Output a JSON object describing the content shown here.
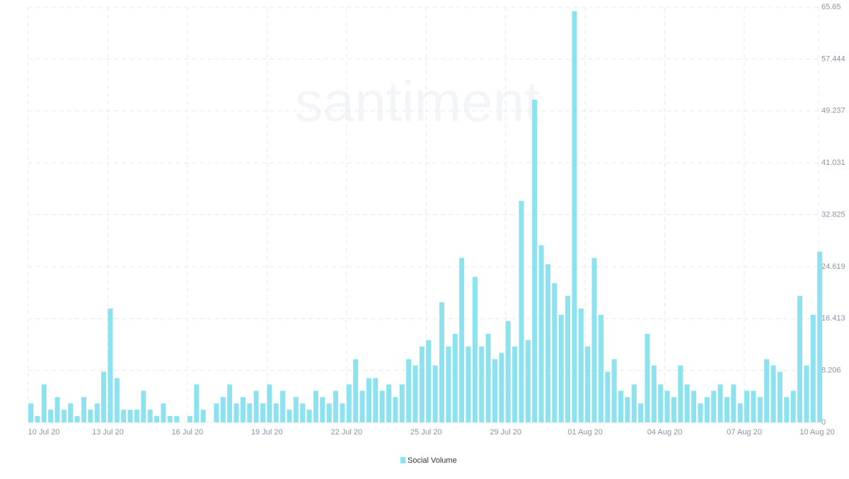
{
  "chart_data": {
    "type": "bar",
    "watermark": "santiment",
    "x": [
      0,
      0.25,
      0.5,
      0.75,
      1,
      1.25,
      1.5,
      1.75,
      2,
      2.25,
      2.5,
      2.75,
      3,
      3.25,
      3.5,
      3.75,
      4,
      4.25,
      4.5,
      4.75,
      5,
      5.25,
      5.5,
      5.75,
      6,
      6.25,
      6.5,
      6.75,
      7,
      7.25,
      7.5,
      7.75,
      8,
      8.25,
      8.5,
      8.75,
      9,
      9.25,
      9.5,
      9.75,
      10,
      10.25,
      10.5,
      10.75,
      11,
      11.25,
      11.5,
      11.75,
      12,
      12.25,
      12.5,
      12.75,
      13,
      13.25,
      13.5,
      13.75,
      14,
      14.25,
      14.5,
      14.75,
      15,
      15.25,
      15.5,
      15.75,
      16,
      16.25,
      16.5,
      16.75,
      17,
      17.25,
      17.5,
      17.75,
      18,
      18.25,
      18.5,
      18.75,
      19,
      19.25,
      19.5,
      19.75,
      20,
      20.25,
      20.5,
      20.75,
      21,
      21.25,
      21.5,
      21.75,
      22,
      22.25,
      22.5,
      22.75,
      23,
      23.25,
      23.5,
      23.75,
      24,
      24.25,
      24.5,
      24.75,
      25,
      25.25,
      25.5,
      25.75,
      26,
      26.25,
      26.5,
      26.75,
      27,
      27.25,
      27.5,
      27.75,
      28,
      28.25,
      28.5,
      28.75,
      29,
      29.25,
      29.5,
      29.75
    ],
    "series": [
      {
        "name": "Social Volume",
        "color": "#8de2ef",
        "values": [
          3,
          1,
          6,
          2,
          4,
          2,
          3,
          1,
          4,
          2,
          3,
          8,
          18,
          7,
          2,
          2,
          2,
          5,
          2,
          1,
          3,
          1,
          1,
          0,
          1,
          6,
          2,
          0,
          3,
          4,
          6,
          3,
          4,
          3,
          5,
          3,
          6,
          3,
          5,
          2,
          4,
          3,
          2,
          5,
          4,
          3,
          5,
          3,
          6,
          10,
          5,
          7,
          7,
          5,
          6,
          4,
          6,
          10,
          9,
          12,
          13,
          9,
          19,
          12,
          14,
          26,
          12,
          23,
          12,
          14,
          10,
          11,
          16,
          12,
          35,
          13,
          51,
          28,
          25,
          22,
          17,
          20,
          65,
          18,
          12,
          26,
          17,
          8,
          10,
          5,
          4,
          6,
          3,
          14,
          9,
          6,
          5,
          4,
          9,
          6,
          5,
          3,
          4,
          5,
          6,
          4,
          6,
          3,
          5,
          5,
          4,
          10,
          9,
          8,
          4,
          5,
          20,
          9,
          17,
          27
        ]
      }
    ],
    "xlim": [
      0,
      29.8
    ],
    "xticks": [
      {
        "value": 0,
        "label": "10 Jul 20"
      },
      {
        "value": 3,
        "label": "13 Jul 20"
      },
      {
        "value": 6,
        "label": "16 Jul 20"
      },
      {
        "value": 9,
        "label": "19 Jul 20"
      },
      {
        "value": 12,
        "label": "22 Jul 20"
      },
      {
        "value": 15,
        "label": "25 Jul 20"
      },
      {
        "value": 18,
        "label": "29 Jul 20"
      },
      {
        "value": 21,
        "label": "01 Aug 20"
      },
      {
        "value": 24,
        "label": "04 Aug 20"
      },
      {
        "value": 27,
        "label": "07 Aug 20"
      },
      {
        "value": 29.8,
        "label": "10 Aug 20"
      }
    ],
    "ylim": [
      0,
      65.65
    ],
    "yticks": [
      0,
      8.206,
      16.413,
      24.619,
      32.825,
      41.031,
      49.237,
      57.444,
      65.65
    ],
    "grid": true
  }
}
